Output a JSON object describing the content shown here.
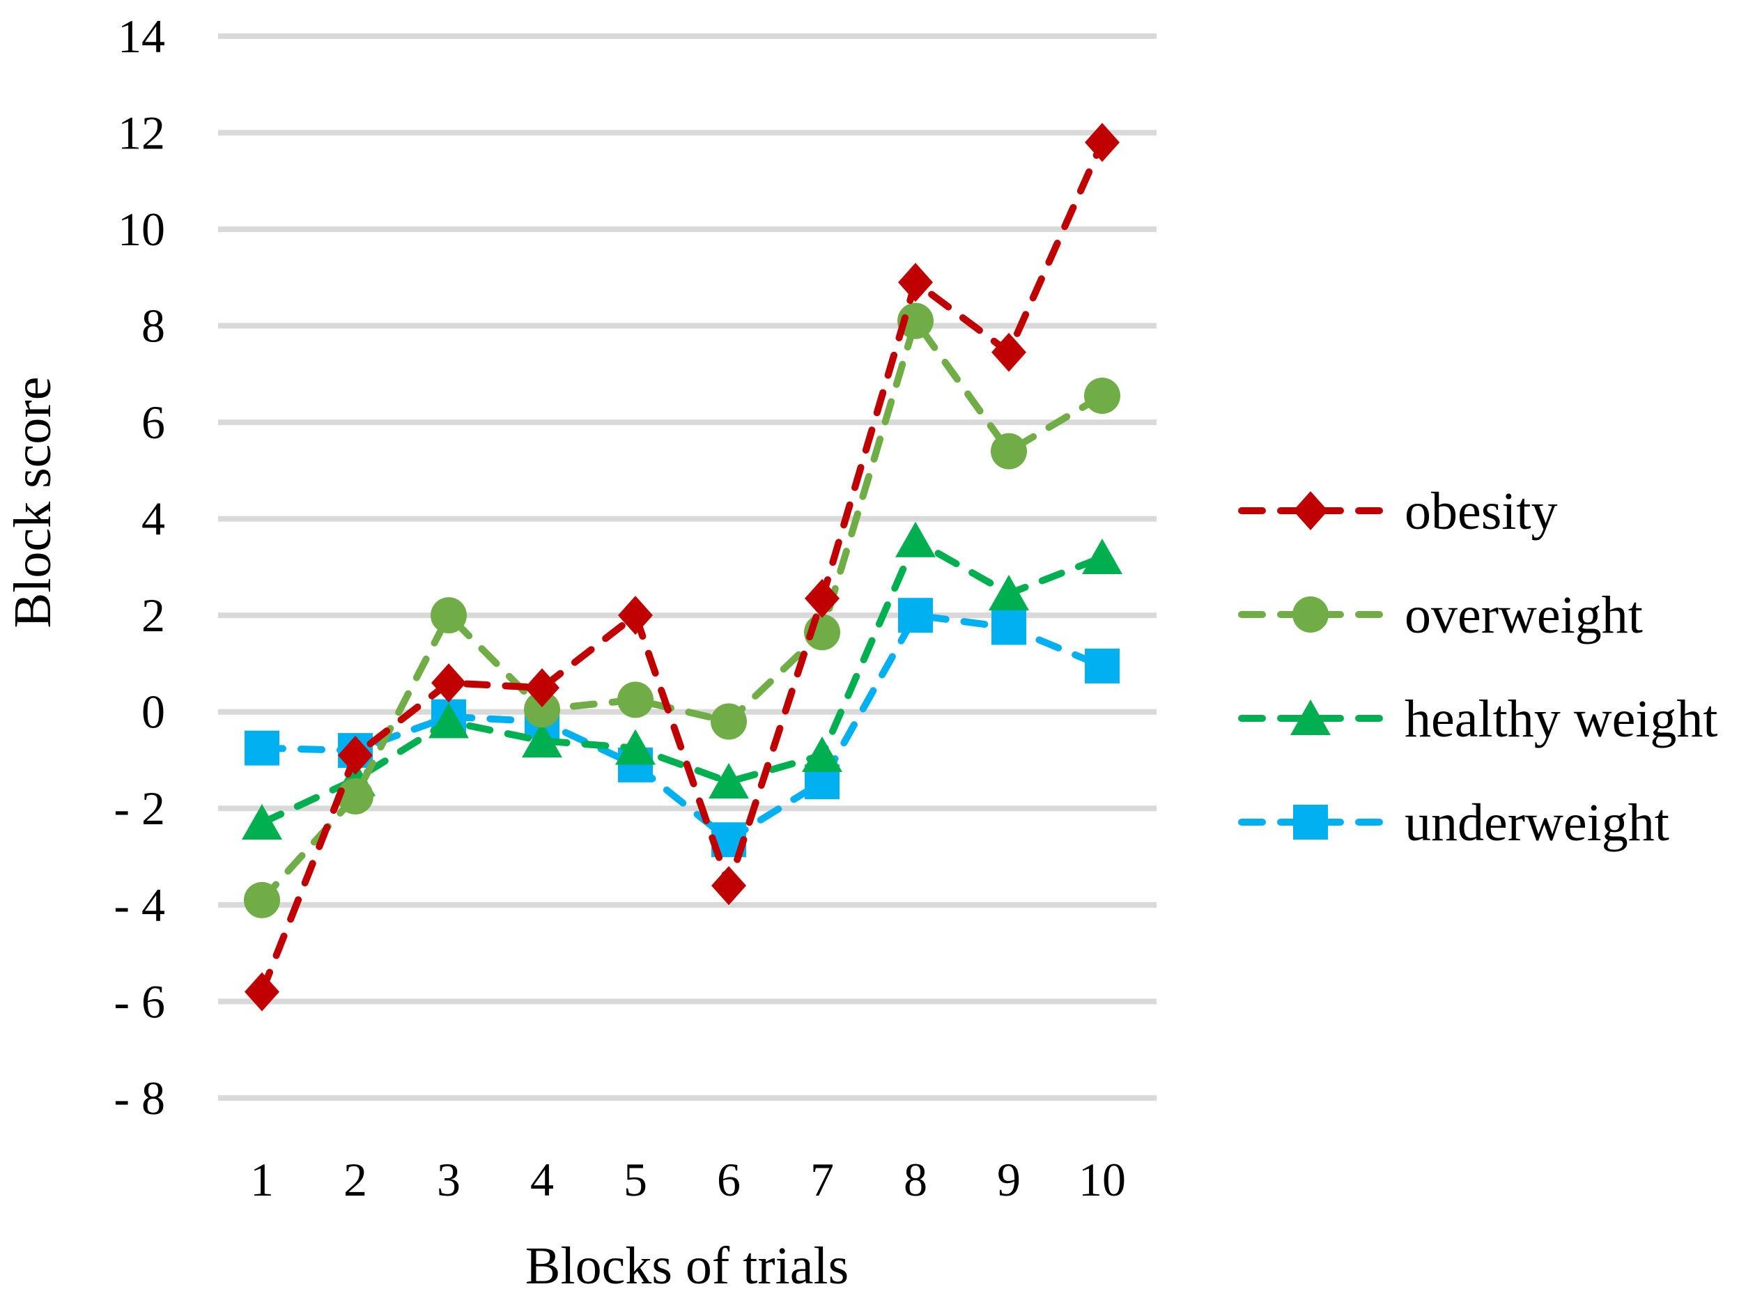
{
  "figure": {
    "background": "#ffffff",
    "gridline_color": "#d9d9d9",
    "text_color": "#000000"
  },
  "chart_data": {
    "type": "line",
    "title": "",
    "xlabel": "Blocks of trials",
    "ylabel": "Block score",
    "categories": [
      "1",
      "2",
      "3",
      "4",
      "5",
      "6",
      "7",
      "8",
      "9",
      "10"
    ],
    "series": [
      {
        "name": "obesity",
        "marker": "diamond",
        "color": "#C00000",
        "values": [
          -5.8,
          -0.9,
          0.6,
          0.5,
          2.0,
          -3.6,
          2.35,
          8.9,
          7.45,
          11.8
        ]
      },
      {
        "name": "overweight",
        "marker": "circle",
        "color": "#70AD47",
        "values": [
          -3.9,
          -1.75,
          2.0,
          0.05,
          0.25,
          -0.2,
          1.65,
          8.1,
          5.4,
          6.55
        ]
      },
      {
        "name": "healthy weight",
        "marker": "triangle",
        "color": "#00B050",
        "values": [
          -2.3,
          -1.4,
          -0.2,
          -0.6,
          -0.75,
          -1.45,
          -0.9,
          3.55,
          2.45,
          3.2
        ]
      },
      {
        "name": "underweight",
        "marker": "square",
        "color": "#00B0F0",
        "values": [
          -0.75,
          -0.8,
          -0.1,
          -0.2,
          -1.1,
          -2.65,
          -1.45,
          2.0,
          1.75,
          0.95
        ]
      }
    ],
    "ylim": [
      -8,
      14
    ],
    "ytick_step": 2,
    "ytick_values": [
      14,
      12,
      10,
      8,
      6,
      4,
      2,
      0,
      -2,
      -4,
      -6,
      -8
    ],
    "ytick_labels": [
      "14",
      "12",
      "10",
      "8",
      "6",
      "4",
      "2",
      "0",
      "- 2",
      "- 4",
      "- 6",
      "- 8"
    ],
    "grid": true,
    "line_style": "dashed",
    "legend_position": "right",
    "draw_order_back_to_front": [
      "underweight",
      "healthy weight",
      "overweight",
      "obesity"
    ]
  }
}
